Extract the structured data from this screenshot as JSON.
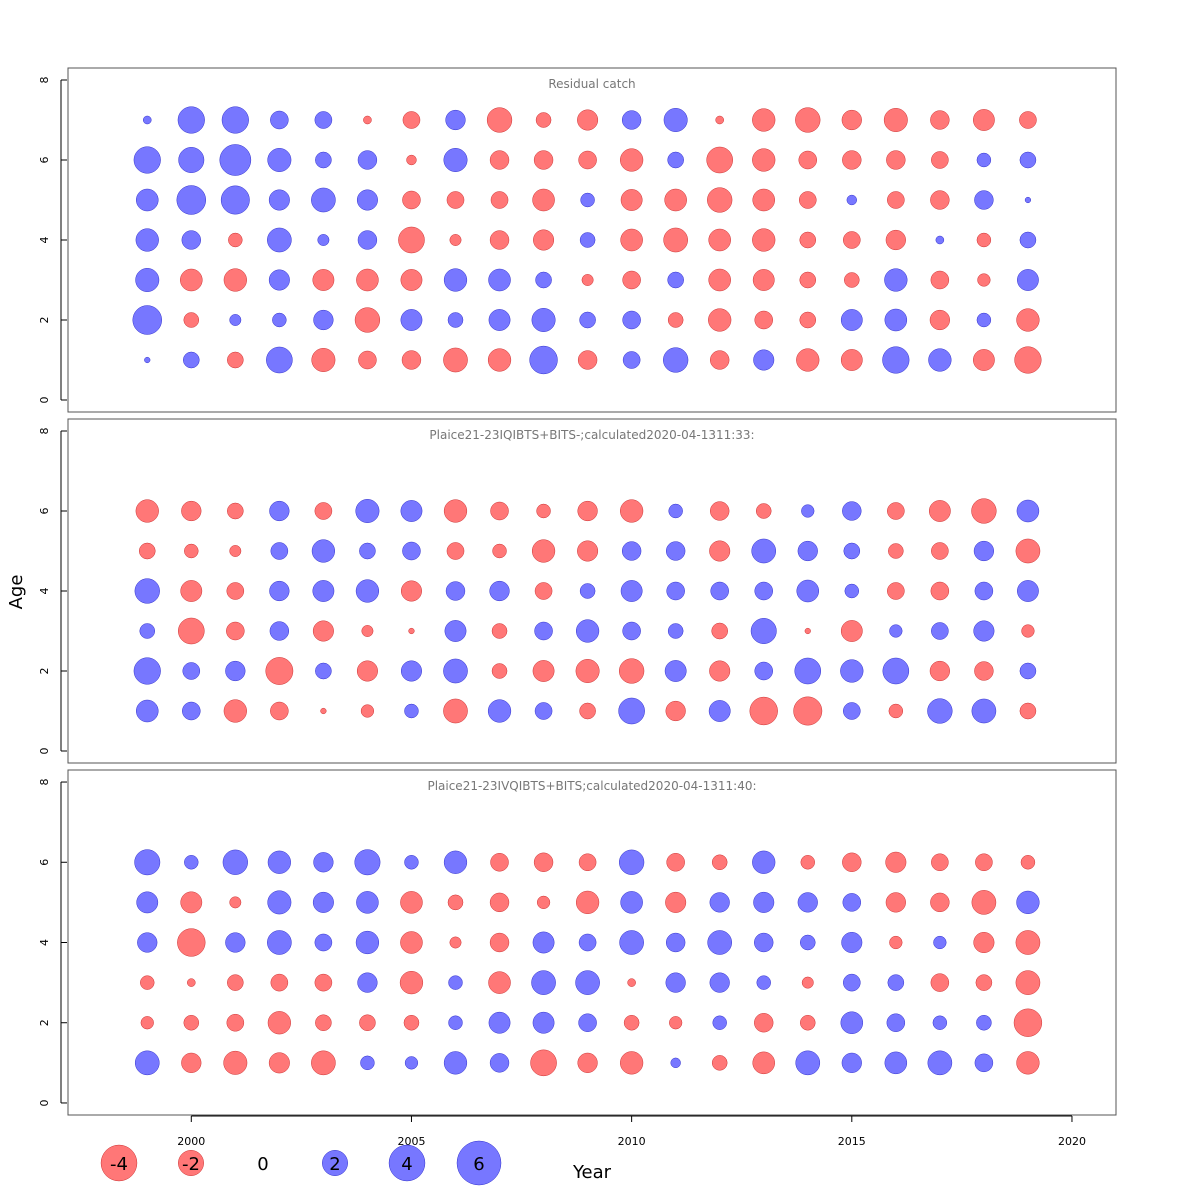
{
  "chart_data": {
    "type": "scatter",
    "subtype": "bubble-residuals",
    "xlabel": "Year",
    "ylabel": "Age",
    "xlim": [
      1997.2,
      2021
    ],
    "ylim": [
      -0.3,
      8.3
    ],
    "x_ticks": [
      2000,
      2005,
      2010,
      2015,
      2020
    ],
    "y_ticks": [
      0,
      2,
      4,
      6,
      8
    ],
    "years": [
      1999,
      2000,
      2001,
      2002,
      2003,
      2004,
      2005,
      2006,
      2007,
      2008,
      2009,
      2010,
      2011,
      2012,
      2013,
      2014,
      2015,
      2016,
      2017,
      2018,
      2019
    ],
    "colors": {
      "positive": "#7777ff",
      "negative": "#ff7777",
      "positive_edge": "#3333cc",
      "negative_edge": "#cc3333"
    },
    "max_abs_residual": 6,
    "legend": {
      "values": [
        -4,
        -2,
        0,
        2,
        4,
        6
      ],
      "labels": [
        "-4",
        "-2",
        "0",
        "2",
        "4",
        "6"
      ],
      "placement": "bottom-left"
    },
    "panels": [
      {
        "title": "Residual catch",
        "ages": [
          1,
          2,
          3,
          4,
          5,
          6,
          7
        ],
        "residuals": [
          [
            0.1,
            0.8,
            -0.8,
            2.1,
            -1.7,
            -1.0,
            -1.1,
            -1.8,
            -1.6,
            2.4,
            -1.1,
            0.9,
            1.9,
            -1.1,
            1.3,
            -1.6,
            -1.4,
            2.2,
            1.6,
            -1.4,
            -2.2
          ],
          [
            2.6,
            -0.7,
            0.4,
            0.6,
            1.2,
            -1.9,
            1.4,
            0.7,
            1.4,
            1.7,
            0.8,
            1.0,
            -0.7,
            -1.6,
            -1.0,
            -0.8,
            1.4,
            1.5,
            -1.2,
            0.6,
            -1.6
          ],
          [
            1.7,
            -1.5,
            -1.6,
            1.3,
            -1.4,
            -1.5,
            -1.4,
            1.6,
            1.5,
            0.8,
            -0.4,
            -1.0,
            0.8,
            -1.5,
            -1.4,
            -0.8,
            -0.7,
            1.6,
            -1.0,
            -0.5,
            1.4
          ],
          [
            1.6,
            1.1,
            -0.6,
            1.8,
            0.4,
            1.1,
            -2.1,
            -0.4,
            -1.1,
            -1.3,
            0.7,
            -1.5,
            -1.8,
            -1.5,
            -1.6,
            -0.8,
            -0.9,
            -1.2,
            0.2,
            -0.6,
            0.8
          ],
          [
            1.5,
            2.6,
            2.5,
            1.3,
            1.8,
            1.3,
            -1.0,
            -0.9,
            -0.9,
            -1.5,
            0.6,
            -1.4,
            -1.5,
            -1.9,
            -1.5,
            -0.9,
            0.3,
            -0.9,
            -1.1,
            1.1,
            0.1
          ],
          [
            2.2,
            2.0,
            3.0,
            1.7,
            0.8,
            1.1,
            -0.3,
            1.7,
            -1.1,
            -1.1,
            -1.0,
            -1.6,
            0.8,
            -2.1,
            -1.6,
            -1.0,
            -1.1,
            -1.1,
            -0.9,
            0.6,
            0.8
          ],
          [
            0.2,
            2.2,
            2.2,
            1.0,
            0.9,
            -0.2,
            -0.9,
            1.2,
            -1.9,
            -0.7,
            -1.3,
            1.1,
            1.7,
            -0.2,
            -1.6,
            -1.9,
            -1.2,
            -1.7,
            -1.1,
            -1.4,
            -0.9
          ]
        ]
      },
      {
        "title": "Plaice21-23IQIBTS+BITS-;calculated2020-04-1311:33:",
        "ages": [
          1,
          2,
          3,
          4,
          5,
          6
        ],
        "residuals": [
          [
            1.5,
            1.0,
            -1.6,
            -1.0,
            -0.1,
            -0.5,
            0.6,
            -1.8,
            1.6,
            0.9,
            -0.8,
            2.1,
            -1.2,
            1.4,
            -2.4,
            -2.5,
            0.9,
            -0.6,
            1.9,
            1.8,
            -0.8
          ],
          [
            2.2,
            0.9,
            1.2,
            -2.3,
            0.8,
            -1.3,
            1.3,
            1.8,
            -0.7,
            -1.4,
            -1.7,
            -1.9,
            1.4,
            -1.3,
            1.0,
            2.1,
            1.6,
            2.1,
            -1.2,
            -1.1,
            0.8
          ],
          [
            0.7,
            -2.1,
            -1.0,
            1.1,
            -1.3,
            -0.4,
            -0.1,
            1.4,
            -0.7,
            1.0,
            1.6,
            1.0,
            0.7,
            -0.8,
            2.0,
            -0.1,
            -1.4,
            0.5,
            0.9,
            1.3,
            -0.5
          ],
          [
            1.9,
            -1.4,
            -0.9,
            1.2,
            1.4,
            1.6,
            -1.3,
            1.1,
            1.2,
            -0.9,
            0.7,
            1.4,
            1.0,
            1.0,
            1.0,
            1.5,
            0.6,
            -0.9,
            -1.0,
            1.0,
            1.4
          ],
          [
            -0.8,
            -0.6,
            -0.4,
            0.9,
            1.6,
            0.8,
            1.0,
            -0.9,
            -0.6,
            -1.6,
            -1.3,
            1.1,
            1.1,
            -1.3,
            1.8,
            1.2,
            0.8,
            -0.7,
            -0.9,
            1.2,
            -1.8
          ],
          [
            -1.6,
            -1.2,
            -0.8,
            1.2,
            -0.9,
            1.7,
            1.4,
            -1.6,
            -1.0,
            -0.6,
            -1.2,
            -1.6,
            0.6,
            -1.1,
            -0.7,
            0.5,
            1.1,
            -0.9,
            -1.4,
            -1.9,
            1.5
          ]
        ]
      },
      {
        "title": "Plaice21-23IVQIBTS+BITS;calculated2020-04-1311:40:",
        "ages": [
          1,
          2,
          3,
          4,
          5,
          6
        ],
        "residuals": [
          [
            1.8,
            -1.2,
            -1.7,
            -1.3,
            -1.8,
            0.6,
            0.5,
            1.6,
            1.1,
            -2.1,
            -1.2,
            -1.6,
            0.3,
            -0.7,
            -1.5,
            1.8,
            1.2,
            1.5,
            1.8,
            1.0,
            -1.6
          ],
          [
            -0.5,
            -0.7,
            -0.9,
            -1.6,
            -0.8,
            -0.8,
            -0.7,
            0.6,
            1.4,
            1.4,
            1.0,
            -0.7,
            -0.5,
            0.6,
            -1.1,
            -0.7,
            1.5,
            1.0,
            0.6,
            0.7,
            -2.4
          ],
          [
            -0.6,
            -0.2,
            -0.8,
            -0.9,
            -0.9,
            1.2,
            -1.6,
            0.6,
            -1.5,
            1.8,
            1.8,
            -0.2,
            1.2,
            1.2,
            0.6,
            -0.4,
            0.9,
            0.8,
            -1.0,
            -0.8,
            -1.8
          ],
          [
            1.2,
            -2.4,
            1.2,
            1.8,
            0.9,
            1.6,
            -1.5,
            -0.4,
            -1.1,
            1.4,
            0.9,
            1.8,
            1.1,
            1.8,
            1.1,
            0.7,
            1.3,
            -0.5,
            0.5,
            -1.3,
            -1.8
          ],
          [
            1.4,
            -1.4,
            -0.4,
            1.7,
            1.3,
            1.5,
            -1.5,
            -0.7,
            -1.1,
            -0.5,
            -1.6,
            1.5,
            -1.3,
            1.2,
            1.3,
            1.2,
            1.0,
            -1.2,
            -1.1,
            -1.8,
            1.6
          ],
          [
            2.0,
            0.6,
            1.9,
            1.6,
            1.2,
            2.0,
            0.6,
            1.6,
            -1.0,
            -1.1,
            -0.9,
            1.9,
            -1.0,
            -0.7,
            1.6,
            -0.6,
            -1.1,
            -1.3,
            -0.9,
            -0.9,
            -0.6
          ]
        ]
      }
    ]
  }
}
